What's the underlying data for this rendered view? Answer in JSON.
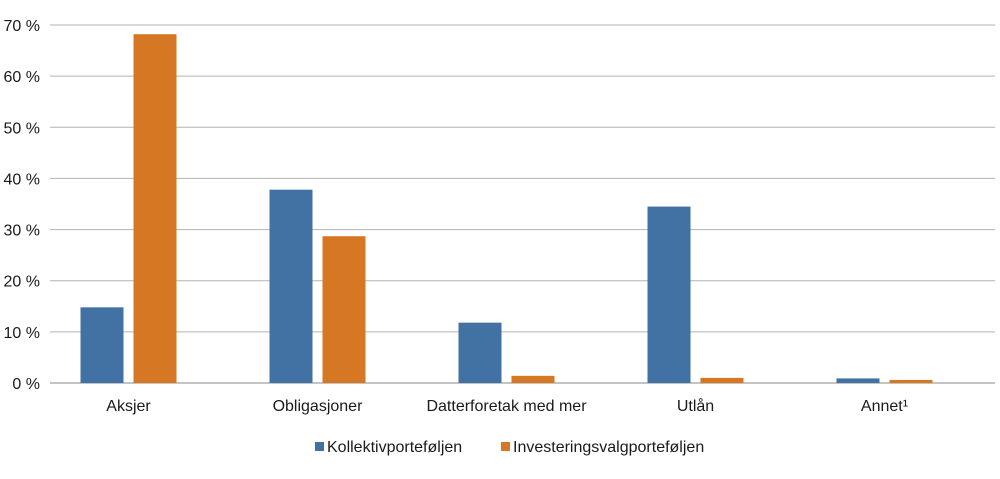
{
  "chart_data": {
    "type": "bar",
    "categories": [
      "Aksjer",
      "Obligasjoner",
      "Datterforetak med mer",
      "Utlån",
      "Annet¹"
    ],
    "series": [
      {
        "name": "Kollektivporteføljen",
        "color": "#4272a4",
        "values": [
          14.8,
          37.8,
          11.8,
          34.5,
          0.9
        ]
      },
      {
        "name": "Investeringsvalgporteføljen",
        "color": "#d67823",
        "values": [
          68.2,
          28.7,
          1.4,
          1.0,
          0.6
        ]
      }
    ],
    "ylim": [
      0,
      70
    ],
    "yticks": [
      0,
      10,
      20,
      30,
      40,
      50,
      60,
      70
    ],
    "ytick_labels": [
      "0 %",
      "10 %",
      "20 %",
      "30 %",
      "40 %",
      "50 %",
      "60 %",
      "70 %"
    ],
    "grid": true,
    "legend_position": "bottom"
  }
}
